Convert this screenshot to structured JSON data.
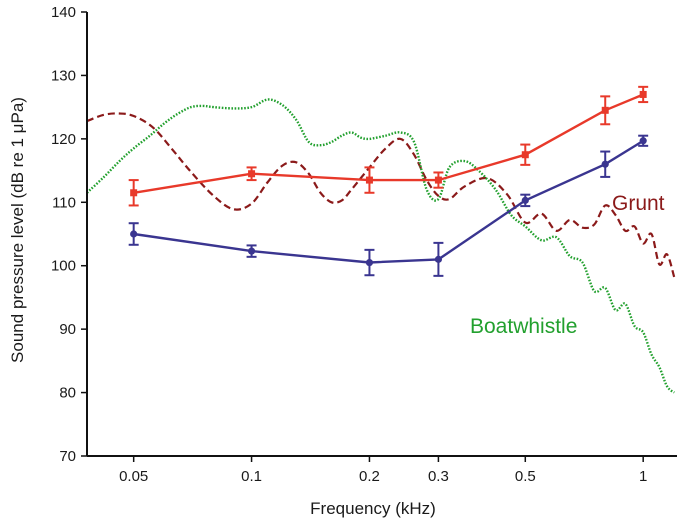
{
  "chart_data": {
    "type": "line",
    "xlabel": "Frequency (kHz)",
    "ylabel": "Sound pressure level (dB re 1 μPa)",
    "xscale": "log",
    "xlim": [
      0.038,
      1.22
    ],
    "ylim": [
      70,
      140
    ],
    "xticks": [
      {
        "value": 0.05,
        "label": "0.05"
      },
      {
        "value": 0.1,
        "label": "0.1"
      },
      {
        "value": 0.2,
        "label": "0.2"
      },
      {
        "value": 0.3,
        "label": "0.3"
      },
      {
        "value": 0.5,
        "label": "0.5"
      },
      {
        "value": 1,
        "label": "1"
      }
    ],
    "yticks": [
      {
        "value": 70,
        "label": "70"
      },
      {
        "value": 80,
        "label": "80"
      },
      {
        "value": 90,
        "label": "90"
      },
      {
        "value": 100,
        "label": "100"
      },
      {
        "value": 110,
        "label": "110"
      },
      {
        "value": 120,
        "label": "120"
      },
      {
        "value": 130,
        "label": "130"
      },
      {
        "value": 140,
        "label": "140"
      }
    ],
    "grid": false,
    "series": [
      {
        "key": "red",
        "color": "#e8392a",
        "marker": "square",
        "style": "solid",
        "x": [
          0.05,
          0.1,
          0.2,
          0.3,
          0.5,
          0.8,
          1.0
        ],
        "y": [
          111.5,
          114.5,
          113.5,
          113.5,
          117.5,
          124.5,
          127.0
        ],
        "err": [
          2.0,
          1.0,
          2.0,
          1.2,
          1.6,
          2.2,
          1.2
        ]
      },
      {
        "key": "blue",
        "color": "#3a3590",
        "marker": "circle",
        "style": "solid",
        "x": [
          0.05,
          0.1,
          0.2,
          0.3,
          0.5,
          0.8,
          1.0
        ],
        "y": [
          105.0,
          102.3,
          100.5,
          101.0,
          110.3,
          116.0,
          119.7
        ],
        "err": [
          1.7,
          0.9,
          2.0,
          2.6,
          0.9,
          2.0,
          0.8
        ]
      },
      {
        "key": "grunt",
        "name": "Grunt",
        "color": "#8b1a1a",
        "style": "dashed",
        "x": [
          0.038,
          0.042,
          0.046,
          0.05,
          0.056,
          0.063,
          0.07,
          0.08,
          0.09,
          0.1,
          0.11,
          0.12,
          0.13,
          0.14,
          0.15,
          0.16,
          0.17,
          0.18,
          0.2,
          0.22,
          0.24,
          0.26,
          0.28,
          0.3,
          0.32,
          0.35,
          0.4,
          0.45,
          0.5,
          0.55,
          0.6,
          0.65,
          0.7,
          0.75,
          0.8,
          0.85,
          0.9,
          0.95,
          1.0,
          1.05,
          1.1,
          1.15,
          1.2
        ],
        "y": [
          122.8,
          123.8,
          124.0,
          123.6,
          121.8,
          118.2,
          114.8,
          111.0,
          108.9,
          109.8,
          113.2,
          115.8,
          116.3,
          114.5,
          111.5,
          110.0,
          110.3,
          112.0,
          115.5,
          118.5,
          120.0,
          117.5,
          113.5,
          111.0,
          110.5,
          112.5,
          113.8,
          111.2,
          106.8,
          108.2,
          105.5,
          107.2,
          106.0,
          106.5,
          109.5,
          108.0,
          105.5,
          106.2,
          103.5,
          105.0,
          100.2,
          101.8,
          98.2
        ]
      },
      {
        "key": "boatwhistle",
        "name": "Boatwhistle",
        "color": "#22a02e",
        "style": "dotted",
        "x": [
          0.038,
          0.042,
          0.046,
          0.05,
          0.055,
          0.06,
          0.065,
          0.07,
          0.075,
          0.08,
          0.09,
          0.1,
          0.11,
          0.12,
          0.13,
          0.14,
          0.15,
          0.16,
          0.17,
          0.18,
          0.19,
          0.2,
          0.22,
          0.24,
          0.26,
          0.28,
          0.3,
          0.32,
          0.35,
          0.38,
          0.42,
          0.46,
          0.5,
          0.55,
          0.6,
          0.65,
          0.7,
          0.75,
          0.8,
          0.85,
          0.9,
          0.95,
          1.0,
          1.05,
          1.1,
          1.15,
          1.2
        ],
        "y": [
          111.5,
          114.0,
          116.5,
          118.5,
          120.5,
          122.5,
          124.0,
          125.0,
          125.2,
          125.0,
          124.8,
          125.0,
          126.2,
          125.3,
          123.0,
          119.5,
          119.0,
          119.5,
          120.5,
          121.0,
          120.2,
          120.0,
          120.5,
          121.0,
          119.5,
          112.0,
          110.5,
          115.5,
          116.5,
          115.0,
          112.0,
          108.0,
          106.2,
          104.0,
          104.5,
          101.5,
          100.5,
          96.0,
          96.5,
          93.0,
          94.0,
          90.5,
          89.5,
          86.0,
          84.0,
          81.0,
          80.0
        ]
      }
    ],
    "annotations": [
      {
        "text": "Grunt",
        "color": "#8b1a1a"
      },
      {
        "text": "Boatwhistle",
        "color": "#22a02e"
      }
    ]
  }
}
